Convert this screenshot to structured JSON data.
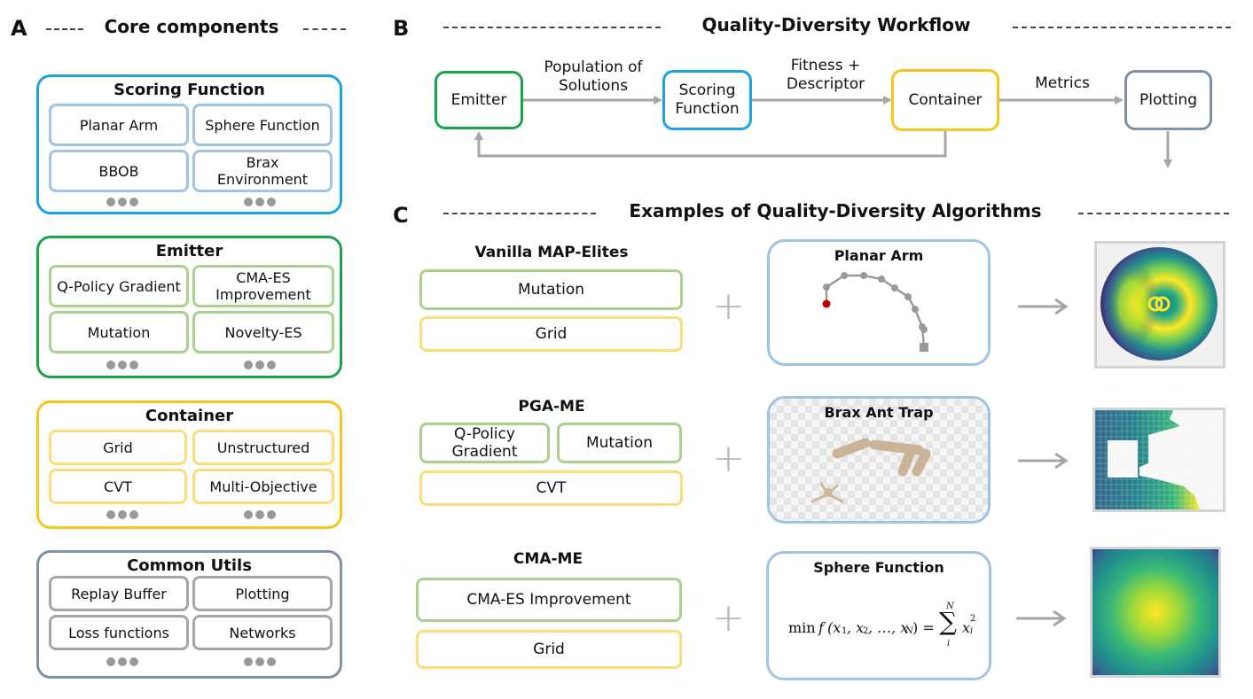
{
  "panels": {
    "a": {
      "letter": "A",
      "title": "Core components"
    },
    "b": {
      "letter": "B",
      "title": "Quality-Diversity Workflow"
    },
    "c": {
      "letter": "C",
      "title": "Examples of Quality-Diversity Algorithms"
    }
  },
  "groups": [
    {
      "id": "scoring",
      "title": "Scoring Function",
      "items": [
        "Planar Arm",
        "Sphere Function",
        "BBOB",
        "Brax Environment"
      ]
    },
    {
      "id": "emitter",
      "title": "Emitter",
      "items": [
        "Q-Policy Gradient",
        "CMA-ES Improvement",
        "Mutation",
        "Novelty-ES"
      ]
    },
    {
      "id": "container",
      "title": "Container",
      "items": [
        "Grid",
        "Unstructured",
        "CVT",
        "Multi-Objective"
      ]
    },
    {
      "id": "utils",
      "title": "Common Utils",
      "items": [
        "Replay Buffer",
        "Plotting",
        "Loss functions",
        "Networks"
      ]
    }
  ],
  "workflow": {
    "boxes": [
      "Emitter",
      "Scoring Function",
      "Container",
      "Plotting"
    ],
    "edges": [
      "Population of Solutions",
      "Fitness + Descriptor",
      "Metrics"
    ]
  },
  "algorithms": [
    {
      "name": "Vanilla MAP-Elites",
      "components": [
        "Mutation",
        "Grid"
      ],
      "task": "Planar Arm"
    },
    {
      "name": "PGA-ME",
      "components": [
        "Q-Policy Gradient",
        "Mutation",
        "CVT"
      ],
      "task": "Brax Ant Trap"
    },
    {
      "name": "CMA-ME",
      "components": [
        "CMA-ES Improvement",
        "Grid"
      ],
      "task": "Sphere Function"
    }
  ],
  "plus_symbol": "+",
  "formula": {
    "prefix": "min",
    "f": "f",
    "args": "(x",
    "sub1": "1",
    "sep2": ", x",
    "sub2": "2",
    "sep3": ", …, x",
    "subN": "N",
    "close": ") =",
    "sum_top": "N",
    "sum": "∑",
    "sum_bottom": "i",
    "term": "x",
    "term_sub": "i",
    "term_sup": "2"
  },
  "colors": {
    "scoring": "#1aa3e0",
    "scoring_item": "#9ec3e3",
    "emitter": "#1aa34a",
    "emitter_item": "#a9d18e",
    "container": "#f5c518",
    "container_item": "#f9de78",
    "utils": "#7f8fa6",
    "utils_item": "#a6a6a6",
    "arrow": "#a6a6a6"
  },
  "icons": [
    "ellipsis-icon",
    "arrow-right-icon",
    "plus-icon",
    "planar-arm-diagram",
    "ant-trap-render",
    "heatmap-icon"
  ]
}
